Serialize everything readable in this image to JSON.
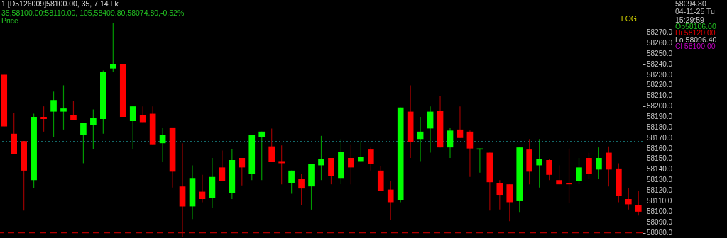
{
  "chart_data": {
    "type": "candlestick",
    "title": "1 [D5126009]58100.00,  35,  7.14 Lk",
    "annotations": [
      "35,58100.00:58110.00, 105,58409.80,58074.80,-0.52%",
      "Price",
      "LOG",
      "58094.80",
      "04-11-25 Tu",
      "15:29:59",
      "Op58106.00",
      "Hi 58120.00",
      "Lo 58096.40",
      "Cl 58100.00"
    ],
    "categories": [
      null,
      null,
      null,
      null,
      null,
      null,
      null,
      null,
      null,
      null,
      null,
      null,
      null,
      null,
      null,
      null,
      null,
      null,
      null,
      null,
      null,
      null,
      null,
      null,
      null,
      null,
      null,
      null,
      null,
      null,
      null,
      null,
      null,
      null,
      null,
      null,
      null,
      null,
      null,
      null,
      null,
      null,
      null,
      null,
      null,
      null,
      null,
      null,
      null,
      null,
      null,
      null,
      null,
      null,
      null,
      null,
      null,
      null,
      null,
      null,
      null,
      null,
      null,
      null,
      null
    ],
    "ohlc": [
      [
        58230,
        58230,
        58181,
        58181
      ],
      [
        58174,
        58194,
        58155,
        58155
      ],
      [
        58167,
        58167,
        58101,
        58139
      ],
      [
        58130,
        58193,
        58122,
        58190
      ],
      [
        58190,
        58200,
        58176,
        58188
      ],
      [
        58195,
        58214,
        58171,
        58206
      ],
      [
        58195,
        58220,
        58178,
        58198
      ],
      [
        58192,
        58205,
        58187,
        58187
      ],
      [
        58173,
        58184,
        58146,
        58184
      ],
      [
        58182,
        58197,
        58159,
        58189
      ],
      [
        58188,
        58234,
        58174,
        58233
      ],
      [
        58236,
        58279,
        58233,
        58240
      ],
      [
        58240,
        58240,
        58190,
        58190
      ],
      [
        58186,
        58200,
        58159,
        58200
      ],
      [
        58192,
        58200,
        58185,
        58185
      ],
      [
        58193,
        58200,
        58164,
        58164
      ],
      [
        58165,
        58180,
        58147,
        58173
      ],
      [
        58180,
        58180,
        58123,
        58138
      ],
      [
        58124,
        58165,
        58076,
        58105
      ],
      [
        58105,
        58144,
        58093,
        58132
      ],
      [
        58119,
        58135,
        58109,
        58112
      ],
      [
        58113,
        58151,
        58104,
        58133
      ],
      [
        58142,
        58158,
        58129,
        58129
      ],
      [
        58118,
        58159,
        58112,
        58149
      ],
      [
        58151,
        58151,
        58125,
        58142
      ],
      [
        58136,
        58173,
        58130,
        58173
      ],
      [
        58171,
        58176,
        58130,
        58176
      ],
      [
        58162,
        58179,
        58147,
        58147
      ],
      [
        58148,
        58163,
        58126,
        58146
      ],
      [
        58127,
        58139,
        58117,
        58139
      ],
      [
        58131,
        58136,
        58106,
        58122
      ],
      [
        58124,
        58145,
        58102,
        58145
      ],
      [
        58144,
        58172,
        58130,
        58150
      ],
      [
        58151,
        58151,
        58126,
        58134
      ],
      [
        58132,
        58169,
        58126,
        58157
      ],
      [
        58151,
        58164,
        58126,
        58142
      ],
      [
        58148,
        58167,
        58148,
        58152
      ],
      [
        58159,
        58161,
        58139,
        58145
      ],
      [
        58139,
        58143,
        58120,
        58120
      ],
      [
        58121,
        58129,
        58092,
        58109
      ],
      [
        58111,
        58199,
        58109,
        58199
      ],
      [
        58195,
        58220,
        58151,
        58166
      ],
      [
        58169,
        58190,
        58148,
        58176
      ],
      [
        58179,
        58200,
        58156,
        58195
      ],
      [
        58196,
        58210,
        58161,
        58161
      ],
      [
        58161,
        58180,
        58151,
        58177
      ],
      [
        58178,
        58200,
        58170,
        58170
      ],
      [
        58176,
        58177,
        58133,
        58160
      ],
      [
        58159,
        58160,
        58137,
        58160
      ],
      [
        58156,
        58156,
        58101,
        58128
      ],
      [
        58127,
        58130,
        58102,
        58116
      ],
      [
        58126,
        58126,
        58091,
        58109
      ],
      [
        58110,
        58161,
        58099,
        58161
      ],
      [
        58159,
        58169,
        58126,
        58138
      ],
      [
        58144,
        58169,
        58123,
        58150
      ],
      [
        58149,
        58150,
        58130,
        58135
      ],
      [
        58130,
        58144,
        58126,
        58126
      ],
      [
        58127,
        58160,
        58108,
        58126
      ],
      [
        58129,
        58151,
        58126,
        58142
      ],
      [
        58151,
        58156,
        58131,
        58136
      ],
      [
        58140,
        58161,
        58131,
        58151
      ],
      [
        58156,
        58162,
        58124,
        58140
      ],
      [
        58141,
        58146,
        58109,
        58115
      ],
      [
        58112,
        58122,
        58102,
        58107
      ],
      [
        58106,
        58120,
        58096.4,
        58100
      ]
    ],
    "colors": [
      "#ff0000",
      "#ff0000",
      "#ff0000",
      "#00ff00",
      "#ff0000",
      "#00ff00",
      "#00ff00",
      "#ff0000",
      "#00ff00",
      "#00ff00",
      "#00ff00",
      "#00ff00",
      "#ff0000",
      "#00ff00",
      "#ff0000",
      "#ff0000",
      "#00ff00",
      "#ff0000",
      "#ff0000",
      "#00ff00",
      "#ff0000",
      "#00ff00",
      "#ff0000",
      "#00ff00",
      "#ff0000",
      "#00ff00",
      "#00ff00",
      "#ff0000",
      "#ff0000",
      "#00ff00",
      "#ff0000",
      "#00ff00",
      "#00ff00",
      "#ff0000",
      "#00ff00",
      "#ff0000",
      "#00ff00",
      "#ff0000",
      "#ff0000",
      "#ff0000",
      "#00ff00",
      "#ff0000",
      "#00ff00",
      "#00ff00",
      "#ff0000",
      "#00ff00",
      "#ff0000",
      "#ff0000",
      "#00ff00",
      "#ff0000",
      "#ff0000",
      "#ff0000",
      "#00ff00",
      "#ff0000",
      "#00ff00",
      "#ff0000",
      "#ff0000",
      "#ff0000",
      "#00ff00",
      "#ff0000",
      "#00ff00",
      "#ff0000",
      "#ff0000",
      "#ff0000",
      "#ff0000"
    ],
    "ylim": [
      58075,
      58301
    ],
    "yticks": [
      {
        "value": 58080,
        "label": "58080.0"
      },
      {
        "value": 58090,
        "label": "58090.0"
      },
      {
        "value": 58100,
        "label": "58100.0"
      },
      {
        "value": 58110,
        "label": "58110.0"
      },
      {
        "value": 58120,
        "label": "58120.0"
      },
      {
        "value": 58130,
        "label": "58130.0"
      },
      {
        "value": 58140,
        "label": "58140.0"
      },
      {
        "value": 58150,
        "label": "58150.0"
      },
      {
        "value": 58160,
        "label": "58160.0"
      },
      {
        "value": 58170,
        "label": "58170.0"
      },
      {
        "value": 58180,
        "label": "58180.0"
      },
      {
        "value": 58190,
        "label": "58190.0"
      },
      {
        "value": 58200,
        "label": "58200.0"
      },
      {
        "value": 58210,
        "label": "58210.0"
      },
      {
        "value": 58220,
        "label": "58220.0"
      },
      {
        "value": 58230,
        "label": "58230.0"
      },
      {
        "value": 58240,
        "label": "58240.0"
      },
      {
        "value": 58250,
        "label": "58250.0"
      },
      {
        "value": 58260,
        "label": "58260.0"
      },
      {
        "value": 58270,
        "label": "58270.0"
      }
    ],
    "tick_labels": "y",
    "ref_lines": [
      {
        "axis": "y",
        "value": 58166.5,
        "color": "#1a8c8c",
        "line_style": "dotted"
      },
      {
        "axis": "y",
        "value": 58080,
        "color": "#b00000",
        "line_style": "dashed"
      }
    ]
  }
}
